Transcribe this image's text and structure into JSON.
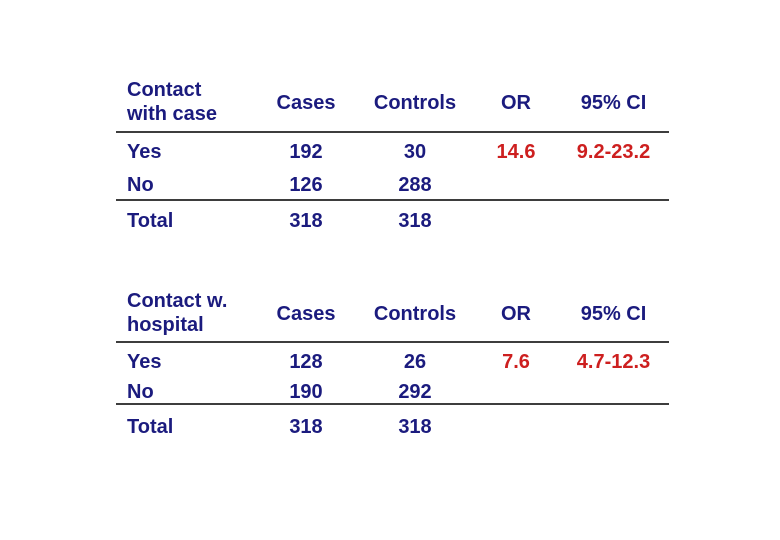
{
  "colors": {
    "text_navy": "#1b1b7e",
    "highlight_red": "#cd1f1f",
    "rule_gray": "#3d3d3d",
    "background": "#ffffff"
  },
  "tables": [
    {
      "name": "contact-with-case",
      "row_header": "Contact\nwith case",
      "columns": [
        "Cases",
        "Controls",
        "OR",
        "95% CI"
      ],
      "rows": [
        {
          "label": "Yes",
          "cases": "192",
          "controls": "30",
          "or": "14.6",
          "ci": "9.2-23.2"
        },
        {
          "label": "No",
          "cases": "126",
          "controls": "288",
          "or": "",
          "ci": ""
        }
      ],
      "total_row": {
        "label": "Total",
        "cases": "318",
        "controls": "318",
        "or": "",
        "ci": ""
      }
    },
    {
      "name": "contact-w-hospital",
      "row_header": "Contact w.\nhospital",
      "columns": [
        "Cases",
        "Controls",
        "OR",
        "95% CI"
      ],
      "rows": [
        {
          "label": "Yes",
          "cases": "128",
          "controls": "26",
          "or": "7.6",
          "ci": "4.7-12.3"
        },
        {
          "label": "No",
          "cases": "190",
          "controls": "292",
          "or": "",
          "ci": ""
        }
      ],
      "total_row": {
        "label": "Total",
        "cases": "318",
        "controls": "318",
        "or": "",
        "ci": ""
      }
    }
  ]
}
